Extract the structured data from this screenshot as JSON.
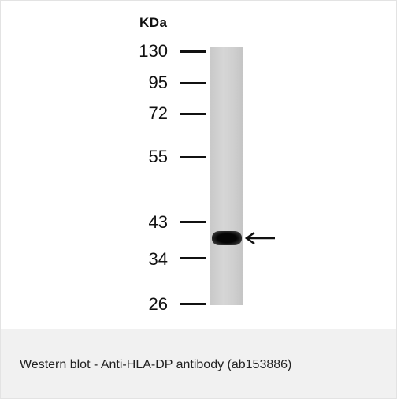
{
  "figure": {
    "unit_label": "KDa",
    "markers": [
      "130",
      "95",
      "72",
      "55",
      "43",
      "34",
      "26"
    ],
    "caption": "Western blot - Anti-HLA-DP antibody (ab153886)"
  },
  "colors": {
    "caption_background": "#f1f1f1",
    "band": "#050505",
    "lane": "#cfcfcf"
  },
  "icons": {
    "band_arrow": "left-arrow-icon"
  }
}
